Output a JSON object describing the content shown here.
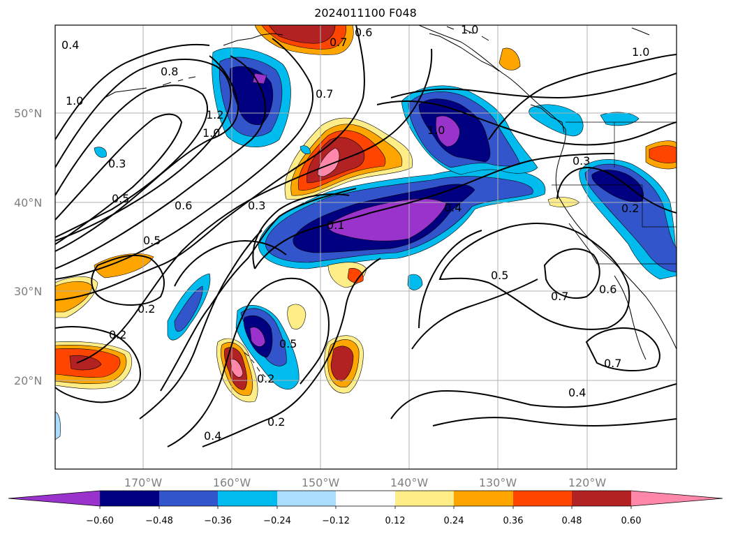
{
  "title": "2024011100 F048",
  "latitude_labels": [
    "50°N",
    "40°N",
    "30°N",
    "20°N"
  ],
  "longitude_labels": [
    "170°W",
    "160°W",
    "150°W",
    "140°W",
    "130°W",
    "120°W"
  ],
  "contour_labels": [
    "0.4",
    "0.8",
    "1.0",
    "1.2",
    "1.0",
    "0.3",
    "0.5",
    "0.6",
    "0.5",
    "0.6",
    "0.7",
    "0.7",
    "1.0",
    "1.0",
    "0.3",
    "0.2",
    "0.2",
    "0.2",
    "0.5",
    "0.4",
    "0.2",
    "0.5",
    "0.7",
    "0.6",
    "0.7",
    "0.4",
    "1.0",
    "0.1",
    "0.4",
    "0.2",
    "0.3"
  ],
  "colorbar": {
    "ticks": [
      "−0.60",
      "−0.48",
      "−0.36",
      "−0.24",
      "−0.12",
      "0.12",
      "0.24",
      "0.36",
      "0.48",
      "0.60"
    ],
    "colors": [
      "#9933cc",
      "#000080",
      "#3355cc",
      "#00bbee",
      "#aaddff",
      "#ffffff",
      "#ffee88",
      "#ffa500",
      "#ff4500",
      "#b22222",
      "#ff88aa"
    ]
  },
  "chart_data": {
    "type": "heatmap",
    "projection": "map",
    "lat_range": [
      "10°N",
      "60°N"
    ],
    "lon_range": [
      "180°W",
      "110°W"
    ],
    "field_range": [
      -0.6,
      0.6
    ],
    "contour_levels": [
      0.1,
      0.2,
      0.3,
      0.4,
      0.5,
      0.6,
      0.7,
      0.8,
      1.0,
      1.2
    ],
    "grid": true
  }
}
